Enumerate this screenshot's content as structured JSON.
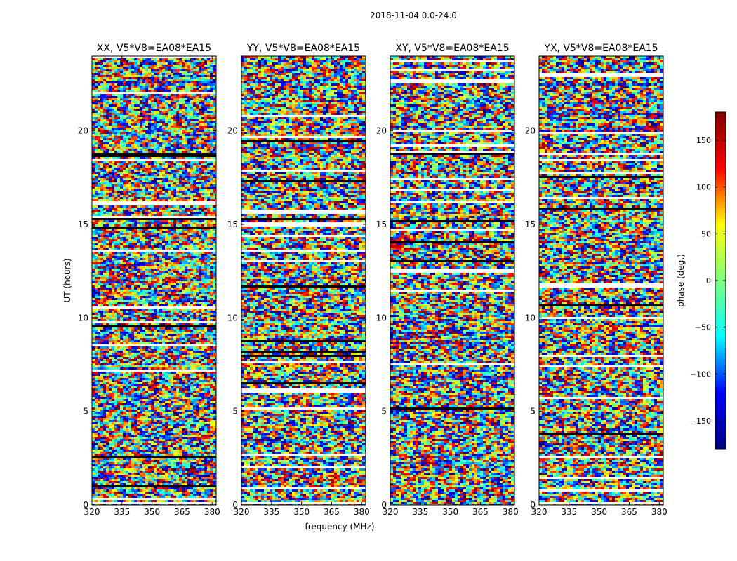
{
  "suptitle": "2018-11-04 0.0-24.0",
  "chart_data": [
    {
      "type": "heatmap",
      "title": "XX, V5*V8=EA08*EA15",
      "xlabel": "",
      "ylabel": "UT (hours)",
      "xlim": [
        320,
        382
      ],
      "ylim": [
        0,
        24
      ],
      "xticks": [
        "320",
        "335",
        "350",
        "365",
        "380"
      ],
      "yticks": [
        "0",
        "5",
        "10",
        "15",
        "20"
      ]
    },
    {
      "type": "heatmap",
      "title": "YY, V5*V8=EA08*EA15",
      "xlabel": "frequency (MHz)",
      "ylabel": "",
      "xlim": [
        320,
        382
      ],
      "ylim": [
        0,
        24
      ],
      "xticks": [
        "320",
        "335",
        "350",
        "365",
        "380"
      ],
      "yticks": [
        "0",
        "5",
        "10",
        "15",
        "20"
      ]
    },
    {
      "type": "heatmap",
      "title": "XY, V5*V8=EA08*EA15",
      "xlabel": "",
      "ylabel": "",
      "xlim": [
        320,
        382
      ],
      "ylim": [
        0,
        24
      ],
      "xticks": [
        "320",
        "335",
        "350",
        "365",
        "380"
      ],
      "yticks": [
        "0",
        "5",
        "10",
        "15",
        "20"
      ]
    },
    {
      "type": "heatmap",
      "title": "YX, V5*V8=EA08*EA15",
      "xlabel": "",
      "ylabel": "",
      "xlim": [
        320,
        382
      ],
      "ylim": [
        0,
        24
      ],
      "xticks": [
        "320",
        "335",
        "350",
        "365",
        "380"
      ],
      "yticks": [
        "0",
        "5",
        "10",
        "15",
        "20"
      ]
    }
  ],
  "colorbar": {
    "label": "phase (deg.)",
    "range": [
      -180,
      180
    ],
    "ticks": [
      "150",
      "100",
      "50",
      "0",
      "−50",
      "−100",
      "−150"
    ],
    "tick_values": [
      150,
      100,
      50,
      0,
      -50,
      -100,
      -150
    ],
    "colormap": "jet",
    "stops": [
      "#000080",
      "#0000ff",
      "#00ffff",
      "#7fff7f",
      "#ffff00",
      "#ff0000",
      "#800000"
    ]
  }
}
